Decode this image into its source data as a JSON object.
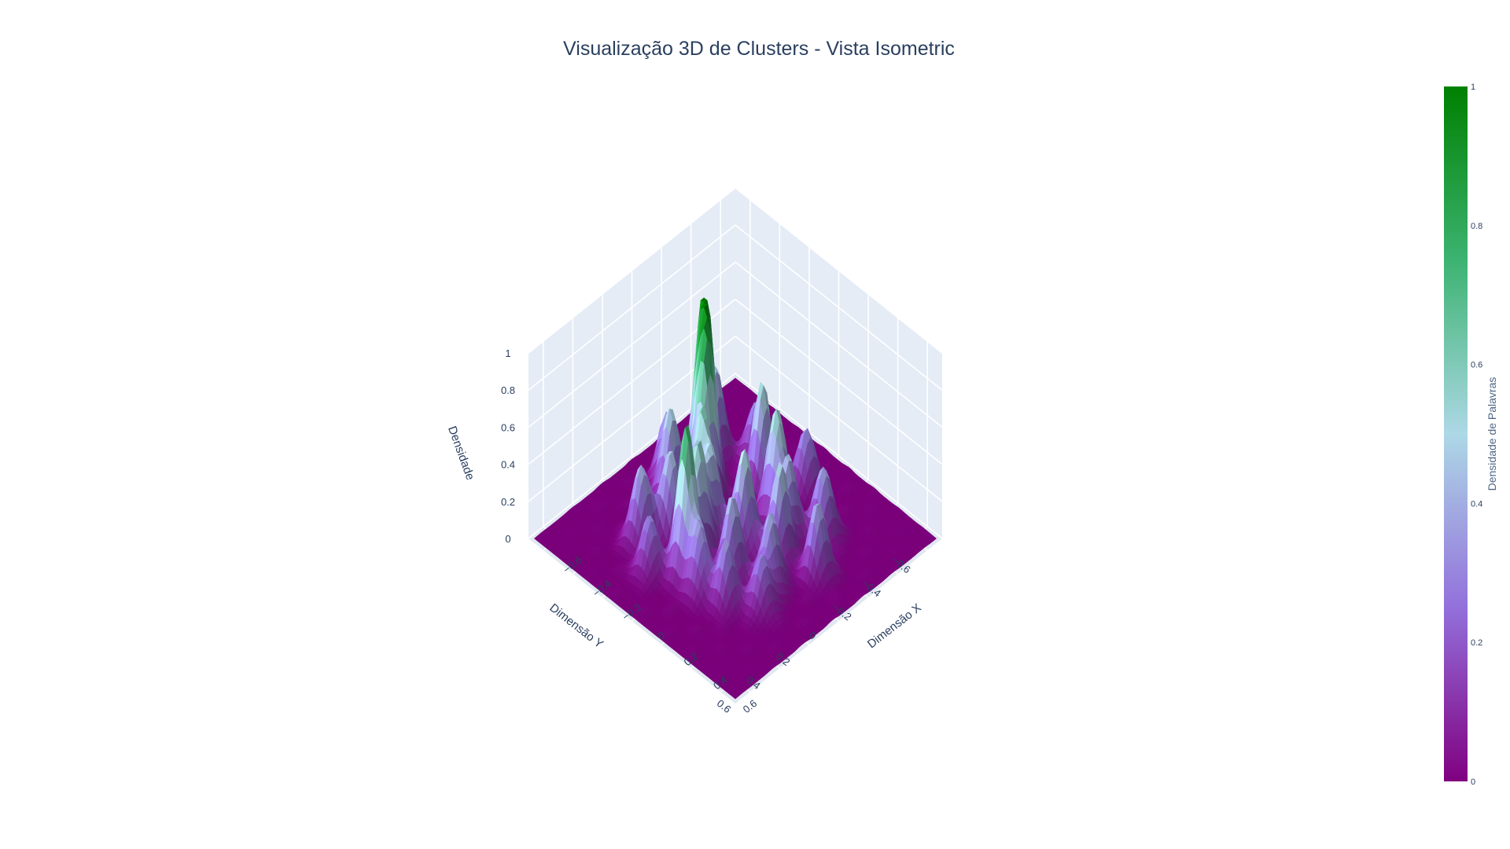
{
  "chart_data": {
    "type": "surface",
    "title": "Visualização 3D de Clusters - Vista Isometric",
    "xlabel": "Dimensão X",
    "ylabel": "Dimensão Y",
    "zlabel": "Densidade",
    "x_ticks": [
      "−0.6",
      "−0.4",
      "−0.2",
      "0",
      "0.2",
      "0.4",
      "0.6"
    ],
    "x_tick_values": [
      -0.6,
      -0.4,
      -0.2,
      0,
      0.2,
      0.4,
      0.6
    ],
    "y_ticks": [
      "−0.6",
      "−0.4",
      "−0.2",
      "0",
      "0.2",
      "0.4",
      "0.6"
    ],
    "y_tick_values": [
      -0.6,
      -0.4,
      -0.2,
      0,
      0.2,
      0.4,
      0.6
    ],
    "z_ticks": [
      "0",
      "0.2",
      "0.4",
      "0.6",
      "0.8",
      "1"
    ],
    "z_tick_values": [
      0,
      0.2,
      0.4,
      0.6,
      0.8,
      1
    ],
    "xlim": [
      -0.7,
      0.7
    ],
    "ylim": [
      -0.7,
      0.7
    ],
    "zlim": [
      0,
      1
    ],
    "peaks": [
      {
        "x": -0.33,
        "y": -0.12,
        "z": 1.0
      },
      {
        "x": -0.26,
        "y": -0.06,
        "z": 0.72
      },
      {
        "x": -0.18,
        "y": 0.05,
        "z": 0.58
      },
      {
        "x": -0.36,
        "y": 0.08,
        "z": 0.52
      },
      {
        "x": -0.22,
        "y": 0.22,
        "z": 0.48
      },
      {
        "x": -0.05,
        "y": 0.2,
        "z": 0.62
      },
      {
        "x": 0.0,
        "y": 0.33,
        "z": 0.82
      },
      {
        "x": -0.42,
        "y": -0.28,
        "z": 0.48
      },
      {
        "x": -0.12,
        "y": -0.3,
        "z": 0.58
      },
      {
        "x": 0.06,
        "y": -0.22,
        "z": 0.6
      },
      {
        "x": 0.08,
        "y": 0.02,
        "z": 0.55
      },
      {
        "x": 0.16,
        "y": 0.18,
        "z": 0.45
      },
      {
        "x": 0.24,
        "y": -0.06,
        "z": 0.5
      },
      {
        "x": 0.34,
        "y": 0.1,
        "z": 0.42
      },
      {
        "x": 0.3,
        "y": -0.3,
        "z": 0.38
      },
      {
        "x": 0.44,
        "y": -0.12,
        "z": 0.4
      },
      {
        "x": -0.3,
        "y": 0.34,
        "z": 0.42
      },
      {
        "x": 0.12,
        "y": 0.36,
        "z": 0.36
      },
      {
        "x": 0.26,
        "y": 0.32,
        "z": 0.34
      },
      {
        "x": -0.46,
        "y": 0.0,
        "z": 0.38
      },
      {
        "x": 0.04,
        "y": -0.44,
        "z": 0.34
      },
      {
        "x": -0.26,
        "y": -0.4,
        "z": 0.32
      },
      {
        "x": 0.18,
        "y": -0.18,
        "z": 0.4
      },
      {
        "x": -0.08,
        "y": 0.08,
        "z": 0.44
      },
      {
        "x": 0.4,
        "y": 0.22,
        "z": 0.3
      },
      {
        "x": -0.14,
        "y": 0.44,
        "z": 0.3
      }
    ],
    "colorbar": {
      "title": "Densidade de Palavras",
      "range": [
        0,
        1
      ],
      "ticks": [
        "0",
        "0.2",
        "0.4",
        "0.6",
        "0.8",
        "1"
      ],
      "tick_values": [
        0,
        0.2,
        0.4,
        0.6,
        0.8,
        1
      ],
      "colorscale": [
        "#800080",
        "#9370db",
        "#add8e6",
        "#3cb371",
        "#008000"
      ]
    },
    "grid": true,
    "legend": "none"
  }
}
